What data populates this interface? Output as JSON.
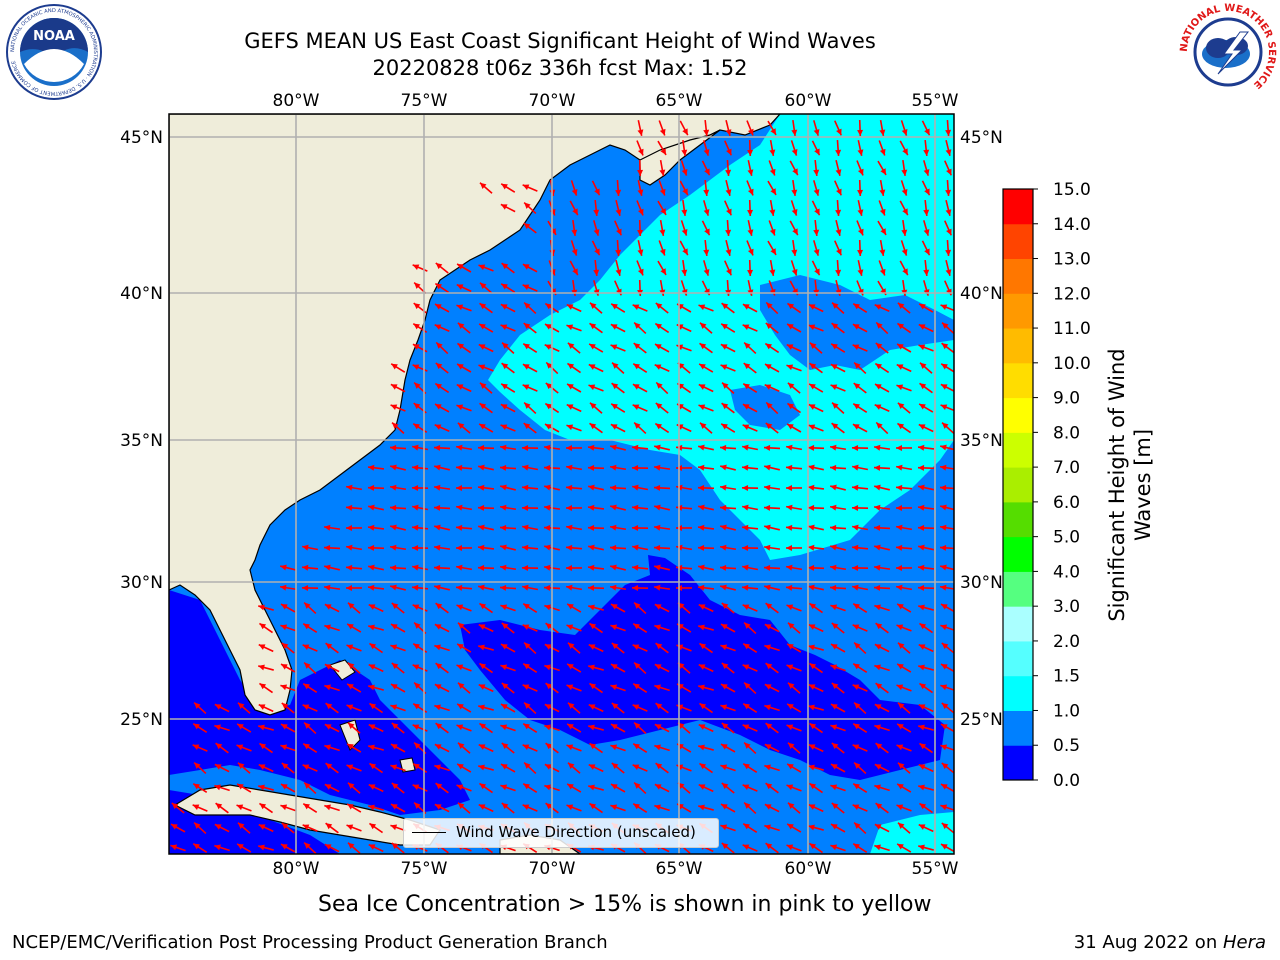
{
  "title_line1": "GEFS MEAN US East Coast Significant Height of Wind Waves",
  "title_line2": "20220828 t06z 336h fcst   Max: 1.52",
  "logos": {
    "left": {
      "name": "noaa-logo",
      "text": "NOAA",
      "ring_text": "NATIONAL OCEANIC AND ATMOSPHERIC ADMINISTRATION · U.S. DEPARTMENT OF COMMERCE"
    },
    "right": {
      "name": "nws-logo",
      "ring_text": "NATIONAL WEATHER SERVICE"
    }
  },
  "map": {
    "lon_ticks": [
      "80°W",
      "75°W",
      "70°W",
      "65°W",
      "60°W",
      "55°W"
    ],
    "lat_ticks": [
      "45°N",
      "40°N",
      "35°N",
      "30°N",
      "25°N"
    ],
    "legend_label": "Wind Wave Direction (unscaled)",
    "colors": {
      "land": "#efedda",
      "sea_0_05": "#0000ff",
      "sea_05_10": "#0080ff",
      "sea_10_15": "#00ffff",
      "arrow": "#ff0000",
      "grid": "#b0b0b0"
    }
  },
  "colorbar": {
    "label_line1": "Significant Height of Wind",
    "label_line2": "Waves [m]",
    "ticks": [
      "0.0",
      "0.5",
      "1.0",
      "1.5",
      "2.0",
      "3.0",
      "4.0",
      "5.0",
      "6.0",
      "7.0",
      "8.0",
      "9.0",
      "10.0",
      "11.0",
      "12.0",
      "13.0",
      "14.0",
      "15.0"
    ],
    "colors": [
      "#0000ff",
      "#0080ff",
      "#00ffff",
      "#55ffff",
      "#aaffff",
      "#55ff80",
      "#00ff00",
      "#55dd00",
      "#aaee00",
      "#ccff00",
      "#ffff00",
      "#ffdd00",
      "#ffbb00",
      "#ff9900",
      "#ff7700",
      "#ff4400",
      "#ff0000"
    ]
  },
  "caption": "Sea Ice Concentration > 15% is shown in pink to yellow",
  "footer_left": "NCEP/EMC/Verification Post Processing Product Generation Branch",
  "footer_date": "31 Aug 2022 on ",
  "footer_host": "Hera"
}
